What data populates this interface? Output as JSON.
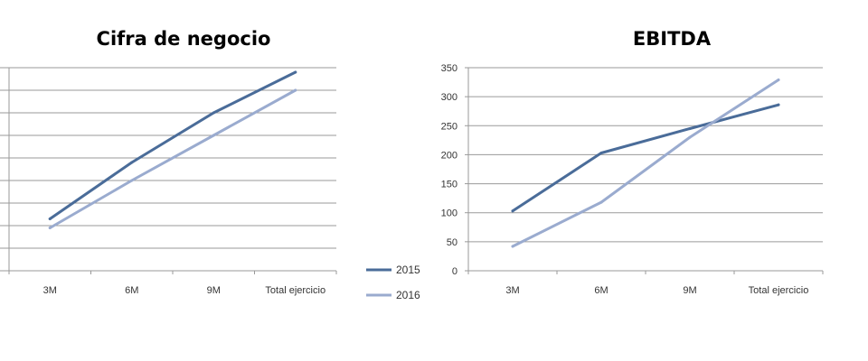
{
  "chart_data": [
    {
      "type": "line",
      "title": "Cifra de negocio",
      "categories": [
        "3M",
        "6M",
        "9M",
        "Total ejercicio"
      ],
      "y_ticks": [],
      "ylim": [
        0,
        9
      ],
      "grid": true,
      "series": [
        {
          "name": "2015",
          "color": "#4a6c99",
          "values": [
            2.3,
            4.8,
            7.0,
            8.8
          ]
        },
        {
          "name": "2016",
          "color": "#9aabcf",
          "values": [
            1.9,
            4.0,
            6.0,
            8.0
          ]
        }
      ]
    },
    {
      "type": "line",
      "title": "EBITDA",
      "categories": [
        "3M",
        "6M",
        "9M",
        "Total ejercicio"
      ],
      "y_ticks": [
        "0",
        "50",
        "100",
        "150",
        "200",
        "250",
        "300",
        "350"
      ],
      "ylim": [
        0,
        350
      ],
      "grid": true,
      "series": [
        {
          "name": "2015",
          "color": "#4a6c99",
          "values": [
            103,
            203,
            245,
            286
          ]
        },
        {
          "name": "2016",
          "color": "#9aabcf",
          "values": [
            42,
            118,
            230,
            329
          ]
        }
      ]
    }
  ],
  "legend": {
    "placement": "left of right chart",
    "entries": [
      {
        "label": "2015",
        "color": "#4a6c99"
      },
      {
        "label": "2016",
        "color": "#9aabcf"
      }
    ]
  }
}
